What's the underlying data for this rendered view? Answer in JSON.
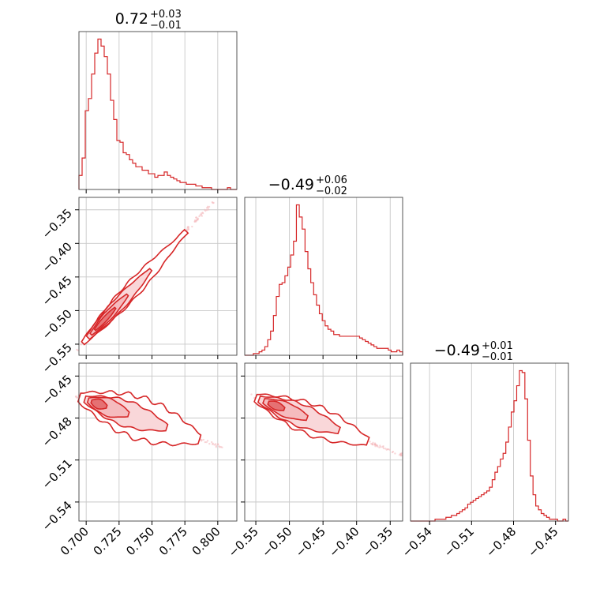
{
  "chart_data": {
    "type": "corner",
    "color": "#d62728",
    "fill_color": "#f4b6b9",
    "grid": true,
    "titles": [
      {
        "main": "0.72",
        "plus": "+0.03",
        "minus": "−0.01"
      },
      {
        "main": "−0.49",
        "plus": "+0.06",
        "minus": "−0.02"
      },
      {
        "main": "−0.49",
        "plus": "+0.01",
        "minus": "−0.01"
      }
    ],
    "params": [
      {
        "range": [
          0.6945,
          0.8145
        ],
        "ticks": [
          0.7,
          0.725,
          0.75,
          0.775,
          0.8
        ],
        "tick_labels": [
          "0.700",
          "0.725",
          "0.750",
          "0.775",
          "0.800"
        ]
      },
      {
        "range": [
          -0.5665,
          -0.3315
        ],
        "ticks": [
          -0.55,
          -0.5,
          -0.45,
          -0.4,
          -0.35
        ],
        "tick_labels": [
          "−0.55",
          "−0.50",
          "−0.45",
          "−0.40",
          "−0.35"
        ]
      },
      {
        "range": [
          -0.5536,
          -0.4408
        ],
        "ticks": [
          -0.54,
          -0.51,
          -0.48,
          -0.45
        ],
        "tick_labels": [
          "−0.54",
          "−0.51",
          "−0.48",
          "−0.45"
        ]
      }
    ],
    "hist": [
      {
        "counts": [
          8,
          18,
          45,
          52,
          66,
          78,
          86,
          82,
          76,
          66,
          51,
          40,
          28,
          27,
          21,
          20,
          17,
          15,
          13,
          13,
          11,
          11,
          9,
          9,
          7,
          8,
          8,
          10,
          8,
          7,
          6,
          5,
          4,
          4,
          3,
          3,
          3,
          2,
          2,
          1,
          1,
          1,
          0,
          0,
          0,
          0,
          0,
          1,
          0,
          0
        ]
      },
      {
        "counts": [
          0,
          0,
          0,
          1,
          1,
          2,
          3,
          5,
          9,
          14,
          23,
          34,
          41,
          42,
          46,
          51,
          58,
          66,
          87,
          80,
          73,
          60,
          50,
          42,
          35,
          29,
          24,
          20,
          17,
          15,
          14,
          12,
          12,
          11,
          11,
          11,
          11,
          11,
          11,
          11,
          10,
          9,
          8,
          7,
          6,
          5,
          4,
          4,
          4,
          4,
          3,
          2,
          2,
          3,
          2
        ]
      },
      {
        "counts": [
          0,
          0,
          0,
          0,
          0,
          0,
          0,
          0,
          0,
          1,
          1,
          1,
          1,
          2,
          2,
          3,
          3,
          4,
          5,
          6,
          7,
          9,
          10,
          11,
          12,
          13,
          14,
          15,
          16,
          18,
          22,
          26,
          29,
          33,
          36,
          42,
          50,
          58,
          64,
          72,
          80,
          79,
          65,
          43,
          24,
          14,
          8,
          6,
          4,
          3,
          2,
          1,
          1,
          1,
          0,
          0,
          1,
          0
        ]
      }
    ]
  }
}
